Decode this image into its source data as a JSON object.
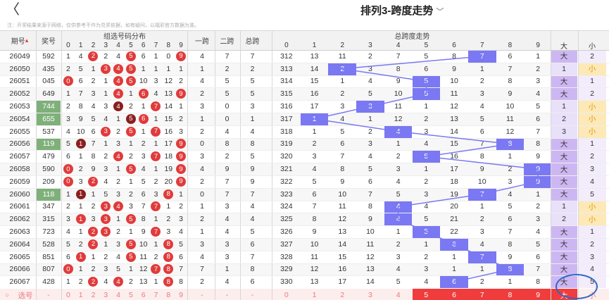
{
  "header": {
    "title": "排列3-跨度走势",
    "back_label": "〈",
    "dropdown_icon": "chevron-down-icon"
  },
  "note": "注：开奖结果来源于网络，仅供参考不作为兑奖依据，如有疑问，以福彩官方数据为准。",
  "columns": {
    "period": "期号",
    "prize": "奖号",
    "dist": "组选号码分布",
    "yikua": "一跨",
    "erkua": "二跨",
    "zongkua": "总跨",
    "trend": "总跨度走势",
    "big": "大",
    "small": "小"
  },
  "digits": [
    "0",
    "1",
    "2",
    "3",
    "4",
    "5",
    "6",
    "7",
    "8",
    "9"
  ],
  "colors": {
    "ball": "#e03b3b",
    "ball_dark": "#8b1e1e",
    "trend": "#7a78f2",
    "big_bg": "#e2d5f7",
    "small_bg": "#fde9b8",
    "prize_green": "#7fb07a"
  },
  "rows": [
    {
      "p": "26049",
      "n": "592",
      "g": false,
      "d": [
        1,
        4,
        "2",
        2,
        4,
        "5",
        6,
        1,
        0,
        "9"
      ],
      "dk": [],
      "y": "4",
      "e": "7",
      "z": "7",
      "t": [
        "312",
        "13",
        "11",
        "2",
        "7",
        "5",
        "8",
        "7",
        "6",
        "1"
      ],
      "tv": 7,
      "big": "大",
      "small": "2"
    },
    {
      "p": "26050",
      "n": "435",
      "g": false,
      "d": [
        2,
        5,
        1,
        "3",
        "4",
        "5",
        1,
        1,
        1,
        1
      ],
      "dk": [],
      "y": "1",
      "e": "2",
      "z": "2",
      "t": [
        "313",
        "14",
        "2",
        "3",
        "8",
        "6",
        "9",
        "1",
        "7",
        "2"
      ],
      "tv": 2,
      "big": "1",
      "small": "小"
    },
    {
      "p": "26051",
      "n": "045",
      "g": false,
      "d": [
        "0",
        6,
        2,
        1,
        "4",
        "5",
        10,
        3,
        12,
        2
      ],
      "dk": [],
      "y": "4",
      "e": "5",
      "z": "5",
      "t": [
        "314",
        "15",
        "1",
        "4",
        "9",
        "5",
        "10",
        "2",
        "8",
        "3"
      ],
      "tv": 5,
      "big": "大",
      "small": "1"
    },
    {
      "p": "26052",
      "n": "649",
      "g": false,
      "d": [
        1,
        7,
        3,
        1,
        "4",
        1,
        "6",
        4,
        13,
        "9"
      ],
      "dk": [],
      "y": "2",
      "e": "5",
      "z": "5",
      "t": [
        "315",
        "16",
        "2",
        "5",
        "10",
        "5",
        "11",
        "3",
        "9",
        "4"
      ],
      "tv": 5,
      "big": "大",
      "small": "2"
    },
    {
      "p": "26053",
      "n": "744",
      "g": true,
      "d": [
        2,
        8,
        4,
        3,
        "4",
        2,
        1,
        "7",
        14,
        1
      ],
      "dk": [
        4
      ],
      "y": "3",
      "e": "0",
      "z": "3",
      "t": [
        "316",
        "17",
        "3",
        "3",
        "11",
        "1",
        "12",
        "4",
        "10",
        "5"
      ],
      "tv": 3,
      "big": "1",
      "small": "小"
    },
    {
      "p": "26054",
      "n": "655",
      "g": true,
      "d": [
        3,
        9,
        5,
        4,
        1,
        "5",
        "6",
        1,
        15,
        2
      ],
      "dk": [
        5
      ],
      "y": "1",
      "e": "0",
      "z": "1",
      "t": [
        "317",
        "1",
        "4",
        "1",
        "12",
        "2",
        "13",
        "5",
        "11",
        "6"
      ],
      "tv": 1,
      "big": "2",
      "small": "小"
    },
    {
      "p": "26055",
      "n": "537",
      "g": false,
      "d": [
        4,
        10,
        6,
        "3",
        2,
        "5",
        1,
        "7",
        16,
        3
      ],
      "dk": [],
      "y": "2",
      "e": "4",
      "z": "4",
      "t": [
        "318",
        "1",
        "5",
        "2",
        "4",
        "3",
        "14",
        "6",
        "12",
        "7"
      ],
      "tv": 4,
      "big": "3",
      "small": "小"
    },
    {
      "p": "26056",
      "n": "119",
      "g": true,
      "d": [
        5,
        "1",
        7,
        1,
        3,
        1,
        2,
        1,
        17,
        "9"
      ],
      "dk": [
        1
      ],
      "y": "0",
      "e": "8",
      "z": "8",
      "t": [
        "319",
        "2",
        "6",
        "3",
        "1",
        "4",
        "15",
        "7",
        "8",
        "8"
      ],
      "tv": 8,
      "big": "大",
      "small": "1"
    },
    {
      "p": "26057",
      "n": "479",
      "g": false,
      "d": [
        6,
        1,
        8,
        2,
        "4",
        2,
        3,
        "7",
        18,
        "9"
      ],
      "dk": [],
      "y": "3",
      "e": "2",
      "z": "5",
      "t": [
        "320",
        "3",
        "7",
        "4",
        "2",
        "5",
        "16",
        "8",
        "1",
        "9"
      ],
      "tv": 5,
      "big": "大",
      "small": "2"
    },
    {
      "p": "26058",
      "n": "590",
      "g": false,
      "d": [
        "0",
        2,
        9,
        3,
        1,
        "5",
        4,
        1,
        19,
        "9"
      ],
      "dk": [],
      "y": "4",
      "e": "9",
      "z": "9",
      "t": [
        "321",
        "4",
        "8",
        "5",
        "3",
        "1",
        "17",
        "9",
        "2",
        "9"
      ],
      "tv": 9,
      "big": "大",
      "small": "3"
    },
    {
      "p": "26059",
      "n": "209",
      "g": false,
      "d": [
        "0",
        3,
        "2",
        4,
        2,
        1,
        5,
        2,
        20,
        "9"
      ],
      "dk": [],
      "y": "2",
      "e": "7",
      "z": "9",
      "t": [
        "322",
        "5",
        "9",
        "6",
        "4",
        "2",
        "18",
        "10",
        "3",
        "9"
      ],
      "tv": 9,
      "big": "大",
      "small": "4"
    },
    {
      "p": "26060",
      "n": "118",
      "g": true,
      "d": [
        1,
        "1",
        1,
        5,
        3,
        2,
        6,
        3,
        "8",
        1
      ],
      "dk": [
        1
      ],
      "y": "0",
      "e": "7",
      "z": "7",
      "t": [
        "323",
        "6",
        "10",
        "7",
        "5",
        "3",
        "19",
        "7",
        "4",
        "1"
      ],
      "tv": 7,
      "big": "大",
      "small": "5"
    },
    {
      "p": "26061",
      "n": "347",
      "g": false,
      "d": [
        2,
        1,
        2,
        "3",
        "4",
        3,
        7,
        "7",
        1,
        2
      ],
      "dk": [],
      "y": "1",
      "e": "3",
      "z": "4",
      "t": [
        "324",
        "7",
        "11",
        "8",
        "4",
        "4",
        "20",
        "1",
        "5",
        "2"
      ],
      "tv": 4,
      "big": "1",
      "small": "小"
    },
    {
      "p": "26062",
      "n": "315",
      "g": false,
      "d": [
        3,
        "1",
        3,
        "3",
        1,
        "5",
        8,
        1,
        2,
        3
      ],
      "dk": [],
      "y": "2",
      "e": "4",
      "z": "4",
      "t": [
        "325",
        "8",
        "12",
        "9",
        "4",
        "5",
        "21",
        "2",
        "6",
        "3"
      ],
      "tv": 4,
      "big": "2",
      "small": "小"
    },
    {
      "p": "26063",
      "n": "723",
      "g": false,
      "d": [
        4,
        1,
        "2",
        "3",
        2,
        1,
        9,
        "7",
        3,
        4
      ],
      "dk": [],
      "y": "1",
      "e": "4",
      "z": "5",
      "t": [
        "326",
        "9",
        "13",
        "10",
        "1",
        "5",
        "22",
        "3",
        "7",
        "4"
      ],
      "tv": 5,
      "big": "大",
      "small": "1"
    },
    {
      "p": "26064",
      "n": "528",
      "g": false,
      "d": [
        5,
        2,
        "2",
        1,
        3,
        "5",
        10,
        1,
        "8",
        5
      ],
      "dk": [],
      "y": "3",
      "e": "3",
      "z": "6",
      "t": [
        "327",
        "10",
        "14",
        "11",
        "2",
        "1",
        "6",
        "4",
        "8",
        "5"
      ],
      "tv": 6,
      "big": "大",
      "small": "2"
    },
    {
      "p": "26065",
      "n": "851",
      "g": false,
      "d": [
        6,
        "1",
        1,
        2,
        4,
        "5",
        11,
        2,
        "8",
        6
      ],
      "dk": [],
      "y": "4",
      "e": "3",
      "z": "7",
      "t": [
        "328",
        "11",
        "15",
        "12",
        "3",
        "2",
        "1",
        "7",
        "9",
        "6"
      ],
      "tv": 7,
      "big": "大",
      "small": "3"
    },
    {
      "p": "26066",
      "n": "807",
      "g": false,
      "d": [
        "0",
        1,
        2,
        3,
        5,
        1,
        12,
        "7",
        "8",
        7
      ],
      "dk": [],
      "y": "7",
      "e": "1",
      "z": "8",
      "t": [
        "329",
        "12",
        "16",
        "13",
        "4",
        "3",
        "1",
        "1",
        "8",
        "7"
      ],
      "tv": 8,
      "big": "大",
      "small": "4"
    },
    {
      "p": "26067",
      "n": "428",
      "g": false,
      "d": [
        1,
        2,
        "2",
        4,
        "4",
        2,
        13,
        1,
        "8",
        8
      ],
      "dk": [],
      "y": "2",
      "e": "4",
      "z": "6",
      "t": [
        "330",
        "13",
        "17",
        "14",
        "5",
        "4",
        "6",
        "2",
        "1",
        "8"
      ],
      "tv": 6,
      "big": "大",
      "small": "5"
    }
  ],
  "select": {
    "label": "选号",
    "dash": "-",
    "nums": [
      "0",
      "1",
      "2",
      "3",
      "4",
      "5",
      "6",
      "7",
      "8",
      "9"
    ],
    "big": "大",
    "small": "小"
  },
  "next_label": "选号"
}
